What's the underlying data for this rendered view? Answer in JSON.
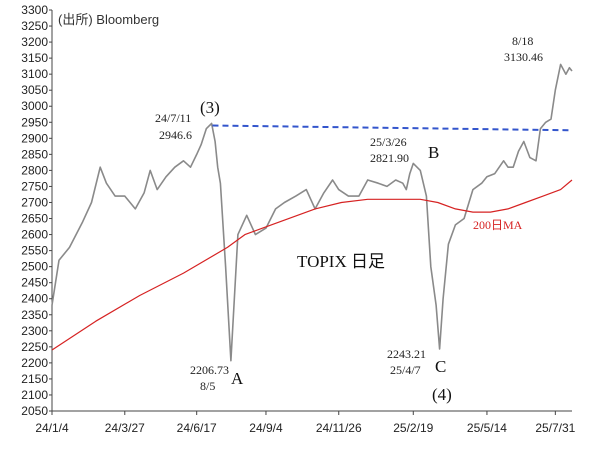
{
  "source_label": "(出所) Bloomberg",
  "chart_data": {
    "type": "line",
    "title": "TOPIX 日足",
    "y_ticks": [
      2050,
      2100,
      2150,
      2200,
      2250,
      2300,
      2350,
      2400,
      2450,
      2500,
      2550,
      2600,
      2650,
      2700,
      2750,
      2800,
      2850,
      2900,
      2950,
      3000,
      3050,
      3100,
      3150,
      3200,
      3250,
      3300
    ],
    "ylim": [
      2050,
      3300
    ],
    "x_tick_labels": [
      "24/1/4",
      "24/3/27",
      "24/6/17",
      "24/9/4",
      "24/11/26",
      "25/2/19",
      "25/5/14",
      "25/7/31"
    ],
    "x_tick_days": [
      0,
      83,
      165,
      244,
      327,
      412,
      496,
      574
    ],
    "xlim_days": [
      0,
      593
    ],
    "series": [
      {
        "name": "TOPIX",
        "color": "#8a8a8a",
        "x_days": [
          0,
          8,
          20,
          35,
          45,
          55,
          62,
          72,
          83,
          95,
          105,
          112,
          120,
          130,
          140,
          150,
          158,
          165,
          170,
          176,
          182,
          186,
          189,
          192,
          198,
          204,
          212,
          222,
          232,
          244,
          255,
          265,
          278,
          290,
          300,
          310,
          320,
          327,
          338,
          350,
          360,
          372,
          382,
          392,
          400,
          404,
          408,
          412,
          420,
          427,
          432,
          438,
          442,
          446,
          452,
          460,
          470,
          480,
          490,
          496,
          505,
          515,
          520,
          526,
          532,
          538,
          545,
          552,
          557,
          563,
          569,
          574,
          580,
          586,
          590,
          593
        ],
        "values": [
          2380,
          2520,
          2560,
          2640,
          2700,
          2810,
          2760,
          2720,
          2720,
          2680,
          2730,
          2800,
          2740,
          2780,
          2810,
          2830,
          2810,
          2850,
          2880,
          2930,
          2946.6,
          2890,
          2810,
          2760,
          2500,
          2206.73,
          2600,
          2660,
          2600,
          2620,
          2680,
          2700,
          2720,
          2740,
          2680,
          2730,
          2770,
          2740,
          2720,
          2720,
          2770,
          2760,
          2750,
          2770,
          2760,
          2740,
          2790,
          2821.9,
          2800,
          2720,
          2500,
          2380,
          2243.21,
          2400,
          2570,
          2630,
          2650,
          2740,
          2760,
          2780,
          2790,
          2830,
          2810,
          2810,
          2860,
          2890,
          2840,
          2830,
          2930,
          2950,
          2960,
          3050,
          3130.46,
          3100,
          3120,
          3110
        ]
      },
      {
        "name": "200日MA",
        "color": "#d62222",
        "x_days": [
          0,
          50,
          100,
          150,
          200,
          220,
          250,
          300,
          330,
          360,
          400,
          420,
          440,
          460,
          480,
          500,
          520,
          540,
          560,
          580,
          593
        ],
        "values": [
          2240,
          2330,
          2410,
          2480,
          2560,
          2600,
          2630,
          2680,
          2700,
          2710,
          2710,
          2710,
          2700,
          2680,
          2670,
          2670,
          2680,
          2700,
          2720,
          2740,
          2770
        ]
      }
    ],
    "trendline": {
      "color": "#3355cc",
      "from": {
        "day": 183,
        "value": 2940
      },
      "to": {
        "day": 593,
        "value": 2925
      }
    },
    "annotations": {
      "peak_date": "24/7/11",
      "peak_value": "2946.6",
      "wave3": "(3)",
      "low_a_value": "2206.73",
      "low_a_date": "8/5",
      "wave_a": "A",
      "high_b_date": "25/3/26",
      "high_b_value": "2821.90",
      "wave_b": "B",
      "low_c_value": "2243.21",
      "low_c_date": "25/4/7",
      "wave_c": "C",
      "wave4": "(4)",
      "latest_date": "8/18",
      "latest_value": "3130.46",
      "ma_label": "200日MA"
    }
  }
}
